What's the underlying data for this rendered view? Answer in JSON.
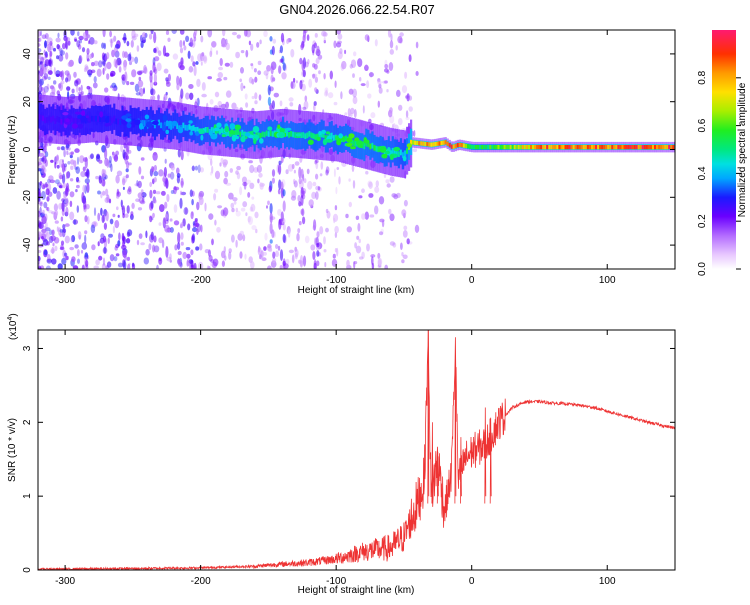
{
  "figure": {
    "title": "GN04.2026.066.22.54.R07"
  },
  "chart_data": [
    {
      "type": "heatmap",
      "xlabel": "Height of straight line (km)",
      "ylabel": "Frequency (Hz)",
      "xlim": [
        -320,
        150
      ],
      "ylim": [
        -50,
        50
      ],
      "xticks": [
        -300,
        -200,
        -100,
        0,
        100
      ],
      "yticks": [
        -40,
        -20,
        0,
        20,
        40
      ],
      "colorbar": {
        "label": "Normalized spectral amplitude",
        "range": [
          0,
          1
        ],
        "ticks": [
          0.0,
          0.2,
          0.4,
          0.6,
          0.8
        ]
      },
      "ridge": {
        "x": [
          -320,
          -300,
          -280,
          -260,
          -240,
          -220,
          -200,
          -180,
          -160,
          -140,
          -120,
          -100,
          -80,
          -60,
          -50,
          -45,
          -30,
          -20,
          -15,
          -10,
          0,
          20,
          50,
          80,
          100,
          120,
          150
        ],
        "freq": [
          13,
          12,
          13,
          12,
          11,
          10,
          8,
          7,
          6,
          7,
          6,
          5,
          2,
          -1,
          -2,
          3,
          2,
          3,
          1,
          2,
          1,
          1,
          1,
          1,
          1,
          1,
          1
        ],
        "amplitude": [
          0.25,
          0.25,
          0.28,
          0.3,
          0.35,
          0.38,
          0.45,
          0.5,
          0.5,
          0.52,
          0.5,
          0.5,
          0.55,
          0.5,
          0.45,
          0.75,
          0.85,
          0.85,
          0.9,
          0.85,
          0.55,
          0.6,
          0.85,
          0.9,
          0.85,
          0.9,
          0.9
        ]
      }
    },
    {
      "type": "line",
      "xlabel": "Height of straight line (km)",
      "ylabel": "SNR (10 * v/v)",
      "multiplier": "(x10",
      "multiplier_exp": "4",
      "multiplier_close": ")",
      "xlim": [
        -320,
        150
      ],
      "ylim": [
        0,
        3.25
      ],
      "xticks": [
        -300,
        -200,
        -100,
        0,
        100
      ],
      "yticks": [
        0,
        1,
        2,
        3
      ],
      "color": "#ee3333",
      "x": [
        -320,
        -250,
        -200,
        -160,
        -140,
        -120,
        -100,
        -80,
        -60,
        -50,
        -40,
        -35,
        -32,
        -30,
        -25,
        -20,
        -15,
        -12,
        -10,
        -5,
        0,
        10,
        20,
        30,
        40,
        50,
        60,
        70,
        80,
        90,
        100,
        110,
        120,
        130,
        140,
        150
      ],
      "y": [
        0.01,
        0.02,
        0.03,
        0.05,
        0.08,
        0.1,
        0.15,
        0.25,
        0.3,
        0.45,
        0.9,
        1.2,
        3.2,
        1.0,
        1.5,
        0.8,
        1.3,
        3.05,
        1.2,
        1.5,
        1.6,
        1.7,
        2.0,
        2.2,
        2.28,
        2.28,
        2.26,
        2.25,
        2.23,
        2.2,
        2.15,
        2.1,
        2.05,
        2.0,
        1.96,
        1.92
      ]
    }
  ]
}
